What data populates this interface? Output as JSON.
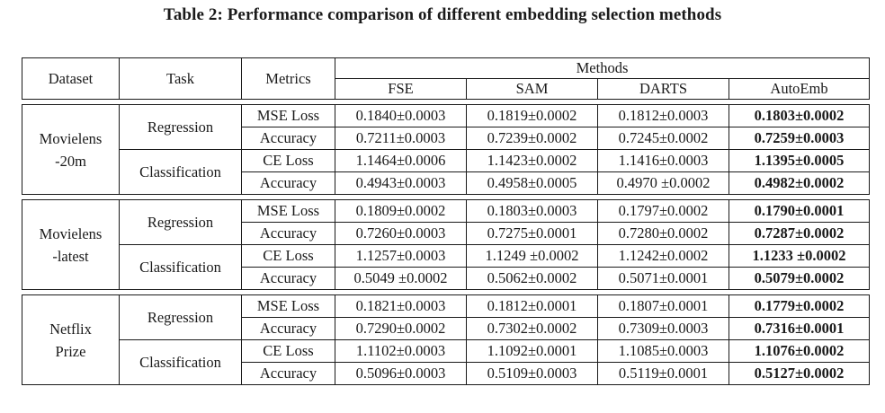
{
  "caption": "Table 2: Performance comparison of different embedding selection methods",
  "table": {
    "header": {
      "dataset": "Dataset",
      "task": "Task",
      "metrics": "Metrics",
      "methods": "Methods",
      "columns": [
        "FSE",
        "SAM",
        "DARTS",
        "AutoEmb"
      ]
    },
    "groups": [
      {
        "dataset_lines": [
          "Movielens",
          "-20m"
        ],
        "tasks": [
          {
            "task": "Regression",
            "rows": [
              {
                "metric": "MSE Loss",
                "values": [
                  "0.1840±0.0003",
                  "0.1819±0.0002",
                  "0.1812±0.0003",
                  "0.1803±0.0002"
                ]
              },
              {
                "metric": "Accuracy",
                "values": [
                  "0.7211±0.0003",
                  "0.7239±0.0002",
                  "0.7245±0.0002",
                  "0.7259±0.0003"
                ]
              }
            ]
          },
          {
            "task": "Classification",
            "rows": [
              {
                "metric": "CE Loss",
                "values": [
                  "1.1464±0.0006",
                  "1.1423±0.0002",
                  "1.1416±0.0003",
                  "1.1395±0.0005"
                ]
              },
              {
                "metric": "Accuracy",
                "values": [
                  "0.4943±0.0003",
                  "0.4958±0.0005",
                  "0.4970 ±0.0002",
                  "0.4982±0.0002"
                ]
              }
            ]
          }
        ]
      },
      {
        "dataset_lines": [
          "Movielens",
          "-latest"
        ],
        "tasks": [
          {
            "task": "Regression",
            "rows": [
              {
                "metric": "MSE Loss",
                "values": [
                  "0.1809±0.0002",
                  "0.1803±0.0003",
                  "0.1797±0.0002",
                  "0.1790±0.0001"
                ]
              },
              {
                "metric": "Accuracy",
                "values": [
                  "0.7260±0.0003",
                  "0.7275±0.0001",
                  "0.7280±0.0002",
                  "0.7287±0.0002"
                ]
              }
            ]
          },
          {
            "task": "Classification",
            "rows": [
              {
                "metric": "CE Loss",
                "values": [
                  "1.1257±0.0003",
                  "1.1249 ±0.0002",
                  "1.1242±0.0002",
                  "1.1233 ±0.0002"
                ]
              },
              {
                "metric": "Accuracy",
                "values": [
                  "0.5049 ±0.0002",
                  "0.5062±0.0002",
                  "0.5071±0.0001",
                  "0.5079±0.0002"
                ]
              }
            ]
          }
        ]
      },
      {
        "dataset_lines": [
          "Netflix",
          "Prize"
        ],
        "tasks": [
          {
            "task": "Regression",
            "rows": [
              {
                "metric": "MSE Loss",
                "values": [
                  "0.1821±0.0003",
                  "0.1812±0.0001",
                  "0.1807±0.0001",
                  "0.1779±0.0002"
                ]
              },
              {
                "metric": "Accuracy",
                "values": [
                  "0.7290±0.0002",
                  "0.7302±0.0002",
                  "0.7309±0.0003",
                  "0.7316±0.0001"
                ]
              }
            ]
          },
          {
            "task": "Classification",
            "rows": [
              {
                "metric": "CE Loss",
                "values": [
                  "1.1102±0.0003",
                  "1.1092±0.0001",
                  "1.1085±0.0003",
                  "1.1076±0.0002"
                ]
              },
              {
                "metric": "Accuracy",
                "values": [
                  "0.5096±0.0003",
                  "0.5109±0.0003",
                  "0.5119±0.0001",
                  "0.5127±0.0002"
                ]
              }
            ]
          }
        ]
      }
    ]
  }
}
